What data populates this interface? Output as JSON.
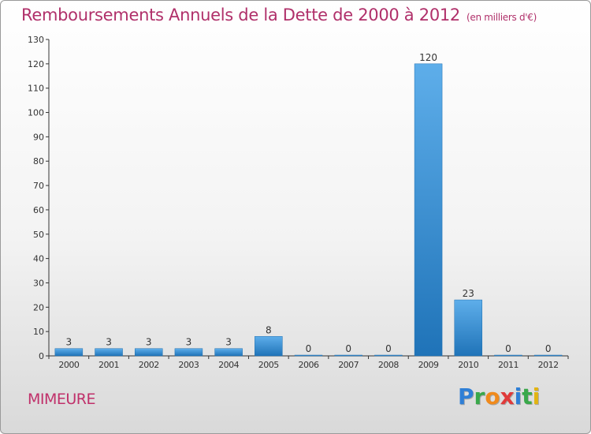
{
  "title": "Remboursements Annuels de la Dette de 2000 à 2012",
  "unit": "(en milliers d'€)",
  "commune": "MIMEURE",
  "logo": {
    "letters": [
      "P",
      "r",
      "o",
      "x",
      "i",
      "t",
      "i"
    ],
    "colors": [
      "#2f7fd6",
      "#39a84a",
      "#f08a1c",
      "#e03a3a",
      "#2f7fd6",
      "#39a84a",
      "#e2b413"
    ]
  },
  "colors": {
    "bar_light": "#5eaeea",
    "bar_dark": "#1f73b8",
    "title": "#b0306a"
  },
  "chart_data": {
    "type": "bar",
    "categories": [
      "2000",
      "2001",
      "2002",
      "2003",
      "2004",
      "2005",
      "2006",
      "2007",
      "2008",
      "2009",
      "2010",
      "2011",
      "2012"
    ],
    "values": [
      3,
      3,
      3,
      3,
      3,
      8,
      0,
      0,
      0,
      120,
      23,
      0,
      0
    ],
    "ylim": [
      0,
      130
    ],
    "yticks": [
      0,
      10,
      20,
      30,
      40,
      50,
      60,
      70,
      80,
      90,
      100,
      110,
      120,
      130
    ],
    "grid": false,
    "legend": "none"
  }
}
